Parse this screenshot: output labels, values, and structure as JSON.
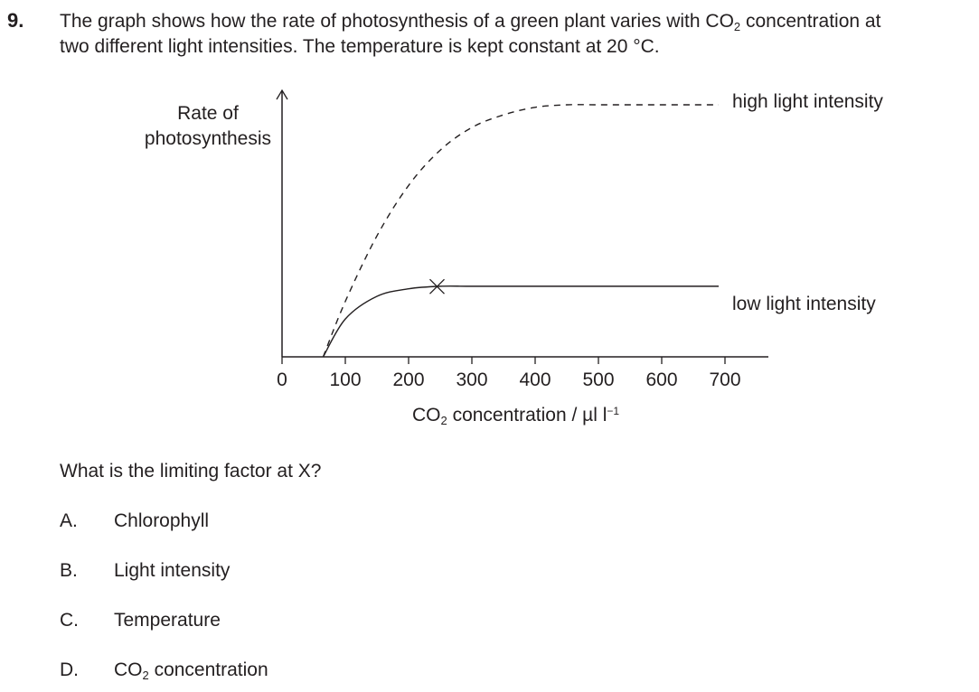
{
  "question": {
    "number": "9.",
    "stem_line1_a": "The graph shows how the rate of photosynthesis of a green plant varies with CO",
    "stem_line1_sub": "2",
    "stem_line1_b": " concentration at",
    "stem_line2": "two different light intensities. The temperature is kept constant at 20 °C."
  },
  "chart_data": {
    "type": "line",
    "ylabel_line1": "Rate of",
    "ylabel_line2": "photosynthesis",
    "xlabel_a": "CO",
    "xlabel_sub": "2",
    "xlabel_b": " concentration / µl l",
    "xlabel_sup": "−1",
    "xlim": [
      0,
      700
    ],
    "x_ticks": [
      0,
      100,
      200,
      300,
      400,
      500,
      600,
      700
    ],
    "x_tick_labels": [
      "0",
      "100",
      "200",
      "300",
      "400",
      "500",
      "600",
      "700"
    ],
    "y_ticks": [],
    "series": [
      {
        "name": "high light intensity",
        "style": "dashed",
        "x": [
          65,
          100,
          150,
          200,
          250,
          300,
          350,
          400,
          450,
          500,
          550,
          600,
          650,
          690
        ],
        "y": [
          0,
          0.22,
          0.48,
          0.68,
          0.82,
          0.91,
          0.96,
          0.99,
          1.0,
          1.0,
          1.0,
          1.0,
          1.0,
          1.0
        ]
      },
      {
        "name": "low light intensity",
        "style": "solid",
        "x": [
          65,
          100,
          150,
          200,
          250,
          300,
          400,
          500,
          600,
          690
        ],
        "y": [
          0,
          0.15,
          0.24,
          0.27,
          0.28,
          0.28,
          0.28,
          0.28,
          0.28,
          0.28
        ]
      }
    ],
    "annotations": [
      {
        "text": "X",
        "x": 245,
        "series": "low light intensity"
      }
    ]
  },
  "prompt": "What is the limiting factor at X?",
  "options": [
    {
      "letter": "A.",
      "text": "Chlorophyll"
    },
    {
      "letter": "B.",
      "text": "Light intensity"
    },
    {
      "letter": "C.",
      "text": "Temperature"
    },
    {
      "letter": "D.",
      "text_a": "CO",
      "text_sub": "2",
      "text_b": " concentration"
    }
  ]
}
